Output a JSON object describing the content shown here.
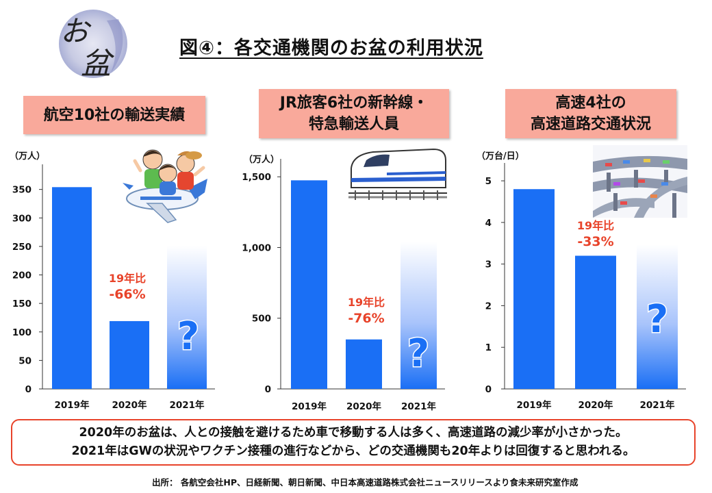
{
  "title": "図④：各交通機関のお盆の利用状況",
  "logo_text": {
    "o": "お",
    "bon": "盆"
  },
  "colors": {
    "bar": "#1a6ff5",
    "accent": "#e8432a",
    "panel_title_bg": "#f9a99b",
    "question": "#1a6ff5"
  },
  "panels": [
    {
      "title_lines": [
        "航空10社の輸送実績"
      ],
      "illustration": "family-airplane-icon"
    },
    {
      "title_lines": [
        "JR旅客6社の新幹線・",
        "特急輸送人員"
      ],
      "illustration": "bullet-train-icon"
    },
    {
      "title_lines": [
        "高速4社の",
        "高速道路交通状況"
      ],
      "illustration": "highway-interchange-icon"
    }
  ],
  "chart_data": [
    {
      "type": "bar",
      "title": "航空10社の輸送実績",
      "ylabel": "（万人）",
      "categories": [
        "2019年",
        "2020年",
        "2021年"
      ],
      "values": [
        354,
        119,
        null
      ],
      "ylim": [
        0,
        370
      ],
      "yticks": [
        0,
        50,
        100,
        150,
        200,
        250,
        300,
        350
      ],
      "ytick_labels": [
        "0",
        "50",
        "100",
        "150",
        "200",
        "250",
        "300",
        "350"
      ],
      "annotation": {
        "lines": [
          "19年比",
          "-66%"
        ]
      },
      "unknown_marker": "?",
      "grid": false
    },
    {
      "type": "bar",
      "title": "JR旅客6社の新幹線・特急輸送人員",
      "ylabel": "（万人）",
      "categories": [
        "2019年",
        "2020年",
        "2021年"
      ],
      "values": [
        1475,
        350,
        null
      ],
      "ylim": [
        0,
        1530
      ],
      "yticks": [
        0,
        500,
        1000,
        1500
      ],
      "ytick_labels": [
        "0",
        "500",
        "1,000",
        "1,500"
      ],
      "annotation": {
        "lines": [
          "19年比",
          "-76%"
        ]
      },
      "unknown_marker": "?",
      "grid": false
    },
    {
      "type": "bar",
      "title": "高速4社の高速道路交通状況",
      "ylabel": "（万台/日）",
      "categories": [
        "2019年",
        "2020年",
        "2021年"
      ],
      "values": [
        4.8,
        3.2,
        null
      ],
      "ylim": [
        0,
        5.1
      ],
      "yticks": [
        0,
        1,
        2,
        3,
        4,
        5
      ],
      "ytick_labels": [
        "0",
        "1",
        "2",
        "3",
        "4",
        "5"
      ],
      "annotation": {
        "lines": [
          "19年比",
          "-33%"
        ]
      },
      "unknown_marker": "?",
      "grid": false
    }
  ],
  "note_lines": [
    "2020年のお盆は、人との接触を避けるため車で移動する人は多く、高速道路の減少率が小さかった。",
    "2021年はGWの状況やワクチン接種の進行などから、どの交通機関も20年よりは回復すると思われる。"
  ],
  "source": "出所：  各航空会社HP、日経新聞、朝日新聞、中日本高速道路株式会社ニュースリリースより食未来研究室作成"
}
